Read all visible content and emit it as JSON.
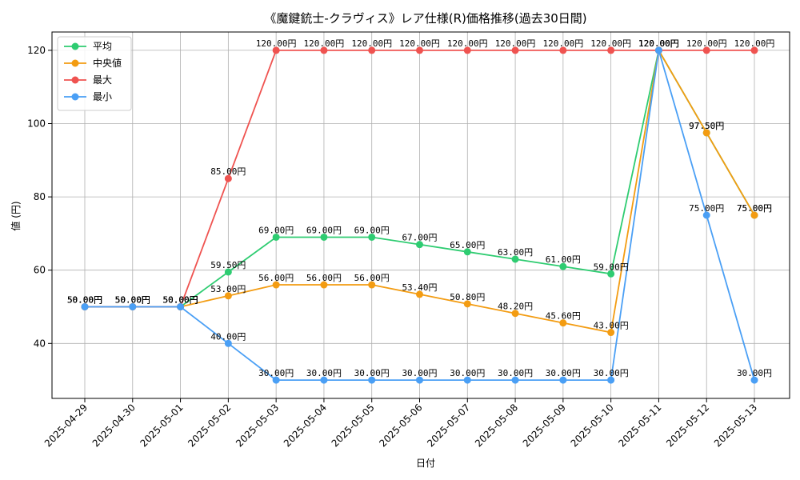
{
  "chart_data": {
    "type": "line",
    "title": "《魔鍵銃士-クラヴィス》レア仕様(R)価格推移(過去30日間)",
    "xlabel": "日付",
    "ylabel": "値 (円)",
    "categories": [
      "2025-04-29",
      "2025-04-30",
      "2025-05-01",
      "2025-05-02",
      "2025-05-03",
      "2025-05-04",
      "2025-05-05",
      "2025-05-06",
      "2025-05-07",
      "2025-05-08",
      "2025-05-09",
      "2025-05-10",
      "2025-05-11",
      "2025-05-12",
      "2025-05-13"
    ],
    "ylim": [
      25,
      125
    ],
    "yticks": [
      40,
      60,
      80,
      100,
      120
    ],
    "grid": true,
    "legend_position": "top-left",
    "value_suffix": "円",
    "series": [
      {
        "name": "平均",
        "color": "#2ecc71",
        "values": [
          50,
          50,
          50,
          59.5,
          69,
          69,
          69,
          67,
          65,
          63,
          61,
          59,
          120,
          97.5,
          75
        ]
      },
      {
        "name": "中央値",
        "color": "#f39c12",
        "values": [
          50,
          50,
          50,
          53,
          56,
          56,
          56,
          53.4,
          50.8,
          48.2,
          45.6,
          43,
          120,
          97.5,
          75
        ]
      },
      {
        "name": "最大",
        "color": "#ef5350",
        "values": [
          50,
          50,
          50,
          85,
          120,
          120,
          120,
          120,
          120,
          120,
          120,
          120,
          120,
          120,
          120
        ]
      },
      {
        "name": "最小",
        "color": "#4a9ff5",
        "values": [
          50,
          50,
          50,
          40,
          30,
          30,
          30,
          30,
          30,
          30,
          30,
          30,
          120,
          75,
          30
        ]
      }
    ]
  }
}
